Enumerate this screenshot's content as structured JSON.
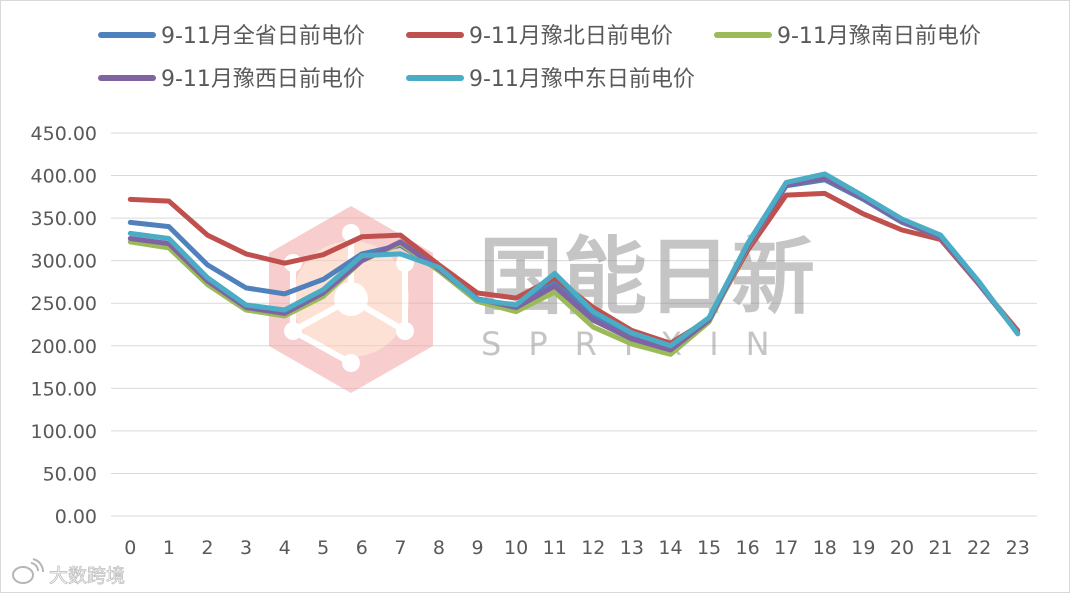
{
  "chart_data": {
    "type": "line",
    "x": [
      0,
      1,
      2,
      3,
      4,
      5,
      6,
      7,
      8,
      9,
      10,
      11,
      12,
      13,
      14,
      15,
      16,
      17,
      18,
      19,
      20,
      21,
      22,
      23
    ],
    "ylim": [
      0,
      450
    ],
    "yticks": [
      "0.00",
      "50.00",
      "100.00",
      "150.00",
      "200.00",
      "250.00",
      "300.00",
      "350.00",
      "400.00",
      "450.00"
    ],
    "grid": true,
    "legend_position": "top",
    "series": [
      {
        "name": "9-11月全省日前电价",
        "color": "#4f81bd",
        "values": [
          345,
          340,
          295,
          268,
          261,
          278,
          308,
          318,
          290,
          255,
          247,
          275,
          235,
          212,
          198,
          232,
          318,
          388,
          395,
          372,
          345,
          328,
          272,
          215
        ]
      },
      {
        "name": "9-11月豫北日前电价",
        "color": "#c0504d",
        "values": [
          372,
          370,
          330,
          308,
          297,
          307,
          328,
          330,
          295,
          262,
          256,
          280,
          245,
          218,
          203,
          231,
          312,
          377,
          379,
          355,
          336,
          325,
          272,
          218
        ]
      },
      {
        "name": "9-11月豫南日前电价",
        "color": "#9bbb59",
        "values": [
          322,
          315,
          272,
          242,
          235,
          258,
          300,
          320,
          288,
          252,
          240,
          263,
          222,
          202,
          190,
          228,
          316,
          390,
          398,
          374,
          346,
          327,
          273,
          215
        ]
      },
      {
        "name": "9-11月豫西日前电价",
        "color": "#8064a2",
        "values": [
          326,
          320,
          276,
          245,
          238,
          262,
          300,
          322,
          290,
          255,
          245,
          270,
          230,
          208,
          195,
          230,
          317,
          389,
          397,
          373,
          346,
          327,
          273,
          215
        ]
      },
      {
        "name": "9-11月豫中东日前电价",
        "color": "#4bacc6",
        "values": [
          332,
          326,
          280,
          248,
          242,
          266,
          306,
          308,
          292,
          254,
          248,
          285,
          240,
          215,
          200,
          233,
          320,
          392,
          402,
          376,
          349,
          330,
          275,
          214
        ]
      }
    ]
  },
  "watermark": {
    "brand": "国能日新",
    "brand_latin": "SPRIXIN",
    "source": "大数跨境"
  },
  "colors": {
    "grid": "#d9d9d9",
    "text": "#595959",
    "logo": "#f08080"
  }
}
